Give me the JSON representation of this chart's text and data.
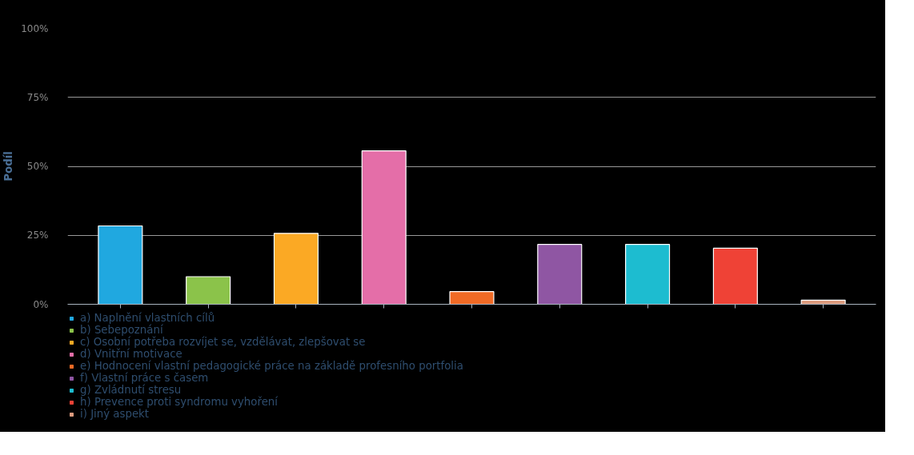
{
  "chart_data": {
    "type": "bar",
    "ylabel": "Podíl",
    "categories": [
      null,
      null,
      null,
      null,
      null,
      null,
      null,
      null,
      null
    ],
    "series": [
      {
        "name": "a) Naplnění vlastních cílů",
        "color": "#20a8e0",
        "values": [
          28.4,
          null,
          null,
          null,
          null,
          null,
          null,
          null,
          null
        ]
      },
      {
        "name": "b) Sebepoznání",
        "color": "#8bc34a",
        "values": [
          null,
          10.0,
          null,
          null,
          null,
          null,
          null,
          null,
          null
        ]
      },
      {
        "name": "c) Osobní potřeba rozvíjet se, vzdělávat, zlepšovat se",
        "color": "#fba924",
        "values": [
          null,
          null,
          25.7,
          null,
          null,
          null,
          null,
          null,
          null
        ]
      },
      {
        "name": "d) Vnitřní motivace",
        "color": "#e46ea8",
        "values": [
          null,
          null,
          null,
          55.6,
          null,
          null,
          null,
          null,
          null
        ]
      },
      {
        "name": "e) Hodnocení vlastní pedagogické práce na základě profesního portfolia",
        "color": "#f06a25",
        "values": [
          null,
          null,
          null,
          null,
          4.6,
          null,
          null,
          null,
          null
        ]
      },
      {
        "name": "f) Vlastní práce s časem",
        "color": "#8f56a3",
        "values": [
          null,
          null,
          null,
          null,
          null,
          21.7,
          null,
          null,
          null
        ]
      },
      {
        "name": "g) Zvládnutí stresu",
        "color": "#1dbcd0",
        "values": [
          null,
          null,
          null,
          null,
          null,
          null,
          21.7,
          null,
          null
        ]
      },
      {
        "name": "h) Prevence proti syndromu vyhoření",
        "color": "#ef4236",
        "values": [
          null,
          null,
          null,
          null,
          null,
          null,
          null,
          20.3,
          null
        ]
      },
      {
        "name": "i) Jiný aspekt",
        "color": "#dc9b7e",
        "values": [
          null,
          null,
          null,
          null,
          null,
          null,
          null,
          null,
          1.5
        ]
      }
    ],
    "ylim": [
      0,
      100
    ],
    "yticks": [
      {
        "value": 0,
        "label": "0%"
      },
      {
        "value": 25,
        "label": "25%"
      },
      {
        "value": 50,
        "label": "50%"
      },
      {
        "value": 75,
        "label": "75%"
      },
      {
        "value": 100,
        "label": "100%"
      }
    ],
    "grid": "y",
    "legend": "bottom left"
  }
}
